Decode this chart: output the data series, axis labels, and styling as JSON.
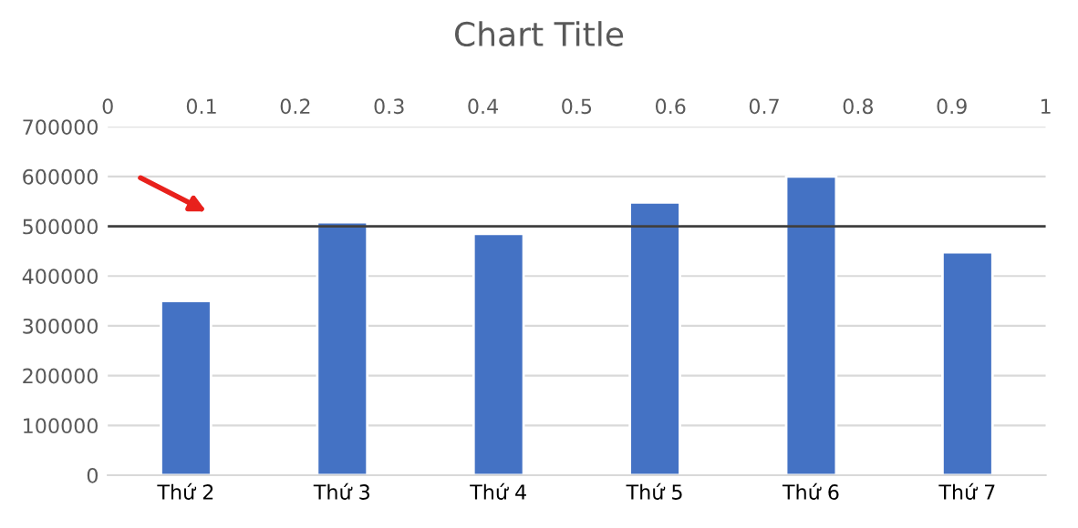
{
  "chart_data": {
    "type": "bar",
    "title": "Chart Title",
    "categories": [
      "Thứ 2",
      "Thứ 3",
      "Thứ 4",
      "Thứ 5",
      "Thứ 6",
      "Thứ 7"
    ],
    "values": [
      350000,
      508000,
      485000,
      548000,
      600000,
      448000
    ],
    "color": "#4472c4",
    "ylim": [
      0,
      700000
    ],
    "yticks": [
      0,
      100000,
      200000,
      300000,
      400000,
      500000,
      600000,
      700000
    ],
    "x2lim": [
      0,
      1
    ],
    "x2ticks": [
      0,
      0.1,
      0.2,
      0.3,
      0.4,
      0.5,
      0.6,
      0.7,
      0.8,
      0.9,
      1
    ],
    "ref_lines": [
      {
        "axis": "y",
        "value": 500000,
        "color": "#404040"
      }
    ],
    "grid": "y",
    "legend": false
  }
}
